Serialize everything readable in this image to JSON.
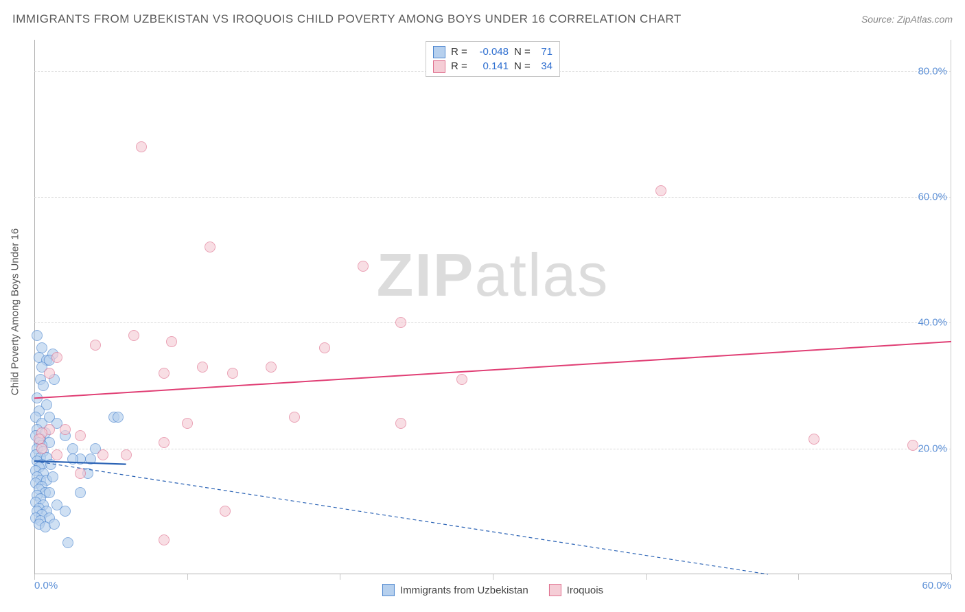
{
  "title": "IMMIGRANTS FROM UZBEKISTAN VS IROQUOIS CHILD POVERTY AMONG BOYS UNDER 16 CORRELATION CHART",
  "source_label": "Source: ZipAtlas.com",
  "y_axis_label": "Child Poverty Among Boys Under 16",
  "watermark_a": "ZIP",
  "watermark_b": "atlas",
  "chart": {
    "type": "scatter",
    "background_color": "#ffffff",
    "grid_color": "#d8d8d8",
    "axis_color": "#b0b0b0",
    "xlim": [
      0,
      60
    ],
    "ylim": [
      0,
      85
    ],
    "xticks": [
      0,
      20,
      40,
      60
    ],
    "xtick_minor": [
      10,
      30,
      50
    ],
    "xtick_labels": [
      "0.0%",
      "",
      "",
      "60.0%"
    ],
    "yticks": [
      20,
      40,
      60,
      80
    ],
    "ytick_labels": [
      "20.0%",
      "40.0%",
      "60.0%",
      "80.0%"
    ],
    "tick_color": "#5b8fd6",
    "tick_fontsize": 15,
    "point_radius": 8,
    "series": [
      {
        "name": "Immigrants from Uzbekistan",
        "label": "Immigrants from Uzbekistan",
        "fill": "#b6d0ee",
        "stroke": "#4d86cf",
        "fill_opacity": 0.65,
        "R": "-0.048",
        "N": "71",
        "trend_solid": {
          "x1": 0,
          "y1": 18,
          "x2": 6,
          "y2": 17.5,
          "color": "#2b63b5",
          "width": 2.2
        },
        "trend_dash": {
          "x1": 0,
          "y1": 18,
          "x2": 48,
          "y2": 0,
          "color": "#2b63b5",
          "width": 1.2,
          "dash": "5,4"
        },
        "points": [
          [
            0.2,
            38
          ],
          [
            0.5,
            36
          ],
          [
            0.3,
            34.5
          ],
          [
            0.8,
            34
          ],
          [
            0.5,
            33
          ],
          [
            1.2,
            35
          ],
          [
            1.0,
            34
          ],
          [
            0.4,
            31
          ],
          [
            1.3,
            31
          ],
          [
            0.6,
            30
          ],
          [
            0.2,
            28
          ],
          [
            0.8,
            27
          ],
          [
            0.3,
            26
          ],
          [
            0.1,
            25
          ],
          [
            0.5,
            24
          ],
          [
            1.0,
            25
          ],
          [
            1.5,
            24
          ],
          [
            0.2,
            23
          ],
          [
            0.7,
            22.5
          ],
          [
            0.1,
            22
          ],
          [
            0.4,
            21.5
          ],
          [
            1.0,
            21
          ],
          [
            0.3,
            21
          ],
          [
            0.5,
            20.5
          ],
          [
            0.2,
            20
          ],
          [
            0.6,
            19.5
          ],
          [
            0.1,
            19
          ],
          [
            0.4,
            18.5
          ],
          [
            0.8,
            18.5
          ],
          [
            0.2,
            18
          ],
          [
            0.5,
            17.5
          ],
          [
            1.1,
            17.5
          ],
          [
            0.3,
            17
          ],
          [
            3.7,
            18.3
          ],
          [
            3.0,
            18.3
          ],
          [
            2.5,
            18.3
          ],
          [
            0.1,
            16.5
          ],
          [
            0.6,
            16
          ],
          [
            0.2,
            15.5
          ],
          [
            0.4,
            15
          ],
          [
            0.8,
            15
          ],
          [
            1.2,
            15.5
          ],
          [
            0.1,
            14.5
          ],
          [
            0.5,
            14
          ],
          [
            0.3,
            13.5
          ],
          [
            0.7,
            13
          ],
          [
            1.0,
            13
          ],
          [
            0.2,
            12.5
          ],
          [
            0.4,
            12
          ],
          [
            0.1,
            11.5
          ],
          [
            0.6,
            11
          ],
          [
            0.3,
            10.5
          ],
          [
            0.8,
            10
          ],
          [
            1.5,
            11
          ],
          [
            0.2,
            10
          ],
          [
            0.5,
            9.5
          ],
          [
            1.0,
            9
          ],
          [
            0.1,
            9
          ],
          [
            0.4,
            8.5
          ],
          [
            2.0,
            10
          ],
          [
            0.3,
            8
          ],
          [
            0.7,
            7.5
          ],
          [
            1.3,
            8
          ],
          [
            5.2,
            25
          ],
          [
            5.5,
            25
          ],
          [
            2.0,
            22
          ],
          [
            2.5,
            20
          ],
          [
            3.5,
            16
          ],
          [
            4.0,
            20
          ],
          [
            3.0,
            13
          ],
          [
            2.2,
            5
          ]
        ]
      },
      {
        "name": "Iroquois",
        "label": "Iroquois",
        "fill": "#f5cdd6",
        "stroke": "#e0718f",
        "fill_opacity": 0.65,
        "R": "0.141",
        "N": "34",
        "trend_solid": {
          "x1": 0,
          "y1": 28,
          "x2": 60,
          "y2": 37,
          "color": "#e03e74",
          "width": 2.0
        },
        "points": [
          [
            7.0,
            68
          ],
          [
            11.5,
            52
          ],
          [
            21.5,
            49
          ],
          [
            41.0,
            61
          ],
          [
            24.0,
            40
          ],
          [
            6.5,
            38
          ],
          [
            4.0,
            36.5
          ],
          [
            1.5,
            34.5
          ],
          [
            1.0,
            32
          ],
          [
            9.0,
            37
          ],
          [
            11.0,
            33
          ],
          [
            15.5,
            33
          ],
          [
            8.5,
            32
          ],
          [
            19.0,
            36
          ],
          [
            13.0,
            32
          ],
          [
            28.0,
            31
          ],
          [
            17.0,
            25
          ],
          [
            24.0,
            24
          ],
          [
            10.0,
            24
          ],
          [
            8.5,
            21
          ],
          [
            6.0,
            19
          ],
          [
            4.5,
            19
          ],
          [
            3.0,
            22
          ],
          [
            2.0,
            23
          ],
          [
            1.0,
            23
          ],
          [
            0.5,
            22.5
          ],
          [
            0.3,
            21.5
          ],
          [
            0.5,
            20
          ],
          [
            1.5,
            19
          ],
          [
            3.0,
            16
          ],
          [
            8.5,
            5.5
          ],
          [
            12.5,
            10
          ],
          [
            51.0,
            21.5
          ],
          [
            57.5,
            20.5
          ]
        ]
      }
    ]
  },
  "legend_top": {
    "r_label": "R =",
    "n_label": "N ="
  }
}
